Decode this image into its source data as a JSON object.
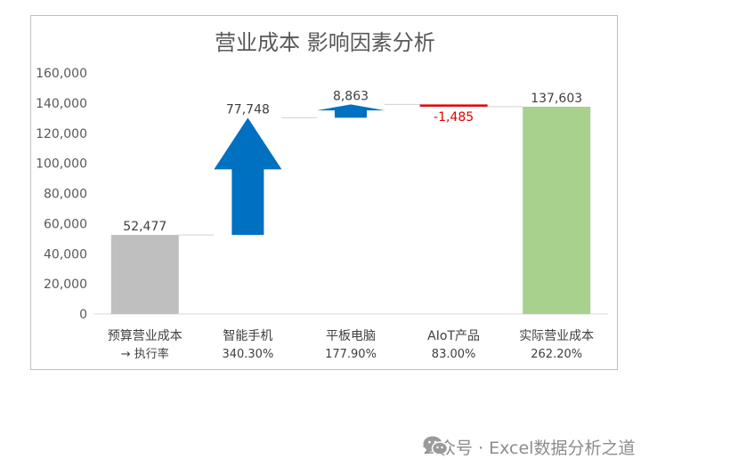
{
  "chart_data": {
    "type": "bar",
    "subtype": "waterfall",
    "title": "营业成本 影响因素分析",
    "ylim": [
      0,
      160000
    ],
    "yticks": [
      "0",
      "20,000",
      "40,000",
      "60,000",
      "80,000",
      "100,000",
      "120,000",
      "140,000",
      "160,000"
    ],
    "ytick_values": [
      0,
      20000,
      40000,
      60000,
      80000,
      100000,
      120000,
      140000,
      160000
    ],
    "grid": false,
    "legend": "none",
    "categories": [
      {
        "label": "预算营业成本",
        "label2": "→ 执行率",
        "pct": ""
      },
      {
        "label": "智能手机",
        "label2": "",
        "pct": "340.30%"
      },
      {
        "label": "平板电脑",
        "label2": "",
        "pct": "177.90%"
      },
      {
        "label": "AIoT产品",
        "label2": "",
        "pct": "83.00%"
      },
      {
        "label": "实际营业成本",
        "label2": "",
        "pct": "262.20%"
      }
    ],
    "bars": [
      {
        "kind": "total",
        "start": 0,
        "end": 52477,
        "label": "52,477",
        "color": "#bfbfbf",
        "label_color": "#404040"
      },
      {
        "kind": "increase",
        "start": 52477,
        "end": 130225,
        "label": "77,748",
        "color": "#0070c0",
        "label_color": "#404040"
      },
      {
        "kind": "increase",
        "start": 130225,
        "end": 139088,
        "label": "8,863",
        "color": "#0070c0",
        "label_color": "#404040"
      },
      {
        "kind": "decrease",
        "start": 139088,
        "end": 137603,
        "label": "-1,485",
        "color": "#e00000",
        "label_color": "#e00000"
      },
      {
        "kind": "total",
        "start": 0,
        "end": 137603,
        "label": "137,603",
        "color": "#a9d18e",
        "label_color": "#404040"
      }
    ]
  },
  "watermark": {
    "text": "公众号 · Excel数据分析之道",
    "icon": "wechat-icon"
  }
}
